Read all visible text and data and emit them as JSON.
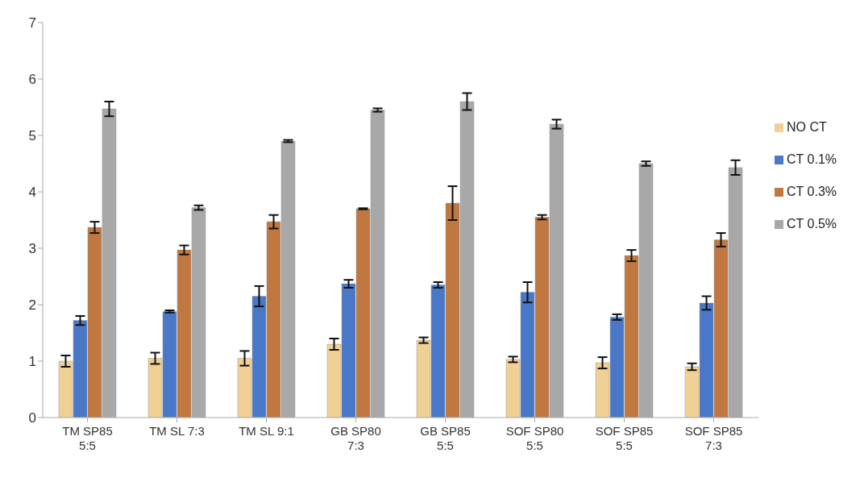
{
  "chart_data": {
    "type": "bar",
    "categories": [
      "TM SP85 5:5",
      "TM SL 7:3",
      "TM SL 9:1",
      "GB SP80 7:3",
      "GB SP85 5:5",
      "SOF SP80 5:5",
      "SOF SP85 5:5",
      "SOF SP85 7:3"
    ],
    "series": [
      {
        "name": "NO CT",
        "color": "#f0d095",
        "values": [
          1.0,
          1.05,
          1.05,
          1.3,
          1.37,
          1.03,
          0.97,
          0.9
        ],
        "errors": [
          0.1,
          0.1,
          0.13,
          0.1,
          0.05,
          0.05,
          0.1,
          0.06
        ]
      },
      {
        "name": "CT 0.1%",
        "color": "#4a78c8",
        "values": [
          1.72,
          1.88,
          2.15,
          2.37,
          2.35,
          2.22,
          1.78,
          2.03
        ],
        "errors": [
          0.08,
          0.02,
          0.18,
          0.07,
          0.05,
          0.18,
          0.05,
          0.12
        ]
      },
      {
        "name": "CT 0.3%",
        "color": "#c07840",
        "values": [
          3.37,
          2.97,
          3.47,
          3.7,
          3.8,
          3.55,
          2.87,
          3.15
        ],
        "errors": [
          0.1,
          0.08,
          0.12,
          0.01,
          0.3,
          0.04,
          0.1,
          0.12
        ]
      },
      {
        "name": "CT 0.5%",
        "color": "#a8a8a8",
        "values": [
          5.47,
          3.72,
          4.9,
          5.45,
          5.6,
          5.2,
          4.5,
          4.43
        ],
        "errors": [
          0.13,
          0.04,
          0.02,
          0.03,
          0.15,
          0.08,
          0.04,
          0.13
        ]
      }
    ],
    "ylim": [
      0,
      7
    ],
    "yticks": [
      0,
      1,
      2,
      3,
      4,
      5,
      6,
      7
    ],
    "grid": false,
    "legend": "right"
  }
}
